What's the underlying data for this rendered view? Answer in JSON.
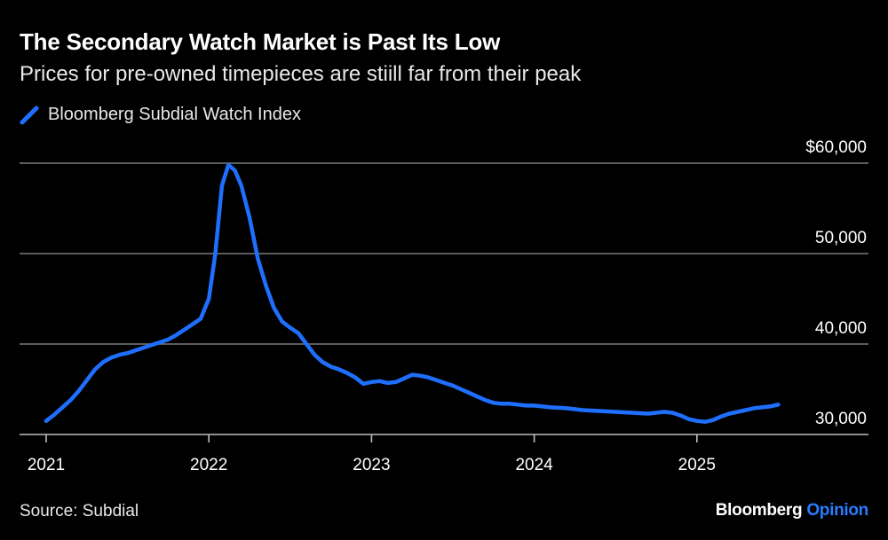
{
  "header": {
    "title": "The Secondary Watch Market is Past Its Low",
    "subtitle": "Prices for pre-owned timepieces are stiill far from their peak"
  },
  "legend": {
    "label": "Bloomberg Subdial Watch Index",
    "icon": "line-swatch-icon"
  },
  "footer": {
    "source": "Source: Subdial",
    "brand_main": "Bloomberg",
    "brand_accent": "Opinion"
  },
  "colors": {
    "background": "#000000",
    "series": "#1f6fff",
    "grid": "#7a7a7a",
    "axis": "#bdbdbd",
    "accent": "#2a7bff"
  },
  "chart_data": {
    "type": "line",
    "title": "The Secondary Watch Market is Past Its Low",
    "subtitle": "Prices for pre-owned timepieces are stiill far from their peak",
    "xlabel": "",
    "ylabel": "",
    "xlim": [
      2021.0,
      2026.0
    ],
    "ylim": [
      30000,
      60000
    ],
    "y_ticks": [
      {
        "value": 60000,
        "label": "$60,000"
      },
      {
        "value": 50000,
        "label": "50,000"
      },
      {
        "value": 40000,
        "label": "40,000"
      },
      {
        "value": 30000,
        "label": "30,000"
      }
    ],
    "x_ticks": [
      {
        "value": 2021.0,
        "label": "2021"
      },
      {
        "value": 2022.0,
        "label": "2022"
      },
      {
        "value": 2023.0,
        "label": "2023"
      },
      {
        "value": 2024.0,
        "label": "2024"
      },
      {
        "value": 2025.0,
        "label": "2025"
      }
    ],
    "grid": true,
    "legend_position": "top-left",
    "series": [
      {
        "name": "Bloomberg Subdial Watch Index",
        "x": [
          2021.0,
          2021.05,
          2021.1,
          2021.15,
          2021.2,
          2021.25,
          2021.3,
          2021.35,
          2021.4,
          2021.45,
          2021.5,
          2021.55,
          2021.6,
          2021.65,
          2021.7,
          2021.75,
          2021.8,
          2021.85,
          2021.9,
          2021.95,
          2022.0,
          2022.04,
          2022.08,
          2022.12,
          2022.16,
          2022.2,
          2022.25,
          2022.3,
          2022.35,
          2022.4,
          2022.45,
          2022.5,
          2022.55,
          2022.6,
          2022.65,
          2022.7,
          2022.75,
          2022.8,
          2022.85,
          2022.9,
          2022.95,
          2023.0,
          2023.05,
          2023.1,
          2023.15,
          2023.2,
          2023.25,
          2023.3,
          2023.35,
          2023.4,
          2023.45,
          2023.5,
          2023.55,
          2023.6,
          2023.65,
          2023.7,
          2023.75,
          2023.8,
          2023.85,
          2023.9,
          2023.95,
          2024.0,
          2024.1,
          2024.2,
          2024.3,
          2024.4,
          2024.5,
          2024.6,
          2024.7,
          2024.8,
          2024.85,
          2024.9,
          2024.95,
          2025.0,
          2025.05,
          2025.1,
          2025.15,
          2025.2,
          2025.25,
          2025.3,
          2025.35,
          2025.4,
          2025.45,
          2025.5
        ],
        "values": [
          31500,
          32200,
          33000,
          33800,
          34800,
          36000,
          37200,
          38000,
          38500,
          38800,
          39000,
          39300,
          39600,
          39900,
          40200,
          40500,
          41000,
          41600,
          42200,
          42800,
          45000,
          50000,
          57500,
          59800,
          59200,
          57500,
          54000,
          49500,
          46500,
          44000,
          42500,
          41800,
          41200,
          40000,
          38800,
          38000,
          37500,
          37200,
          36800,
          36300,
          35600,
          35800,
          35900,
          35700,
          35800,
          36200,
          36600,
          36500,
          36300,
          36000,
          35700,
          35400,
          35000,
          34600,
          34200,
          33800,
          33500,
          33400,
          33400,
          33300,
          33200,
          33200,
          33000,
          32900,
          32700,
          32600,
          32500,
          32400,
          32300,
          32500,
          32400,
          32100,
          31700,
          31500,
          31400,
          31600,
          32000,
          32300,
          32500,
          32700,
          32900,
          33000,
          33100,
          33300
        ]
      }
    ]
  }
}
